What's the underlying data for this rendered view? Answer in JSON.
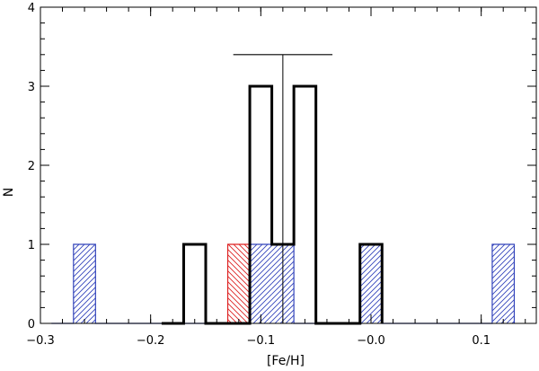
{
  "chart_data": {
    "type": "histogram",
    "xlabel": "[Fe/H]",
    "ylabel": "N",
    "xlim": [
      -0.3,
      0.15
    ],
    "ylim": [
      0,
      4
    ],
    "xticks": [
      -0.3,
      -0.2,
      -0.1,
      0.0,
      0.1
    ],
    "xtick_labels": [
      "−0.3",
      "−0.2",
      "−0.1",
      "−0.0",
      "0.1"
    ],
    "yticks": [
      0,
      1,
      2,
      3,
      4
    ],
    "ytick_labels": [
      "0",
      "1",
      "2",
      "3",
      "4"
    ],
    "bin_width": 0.02,
    "series": [
      {
        "style": "black-thick-outline",
        "color": "#000000",
        "edges": [
          -0.19,
          -0.17,
          -0.15,
          -0.13,
          -0.11,
          -0.09,
          -0.07,
          -0.05,
          -0.03,
          -0.01,
          0.01
        ],
        "counts": [
          0,
          1,
          0,
          0,
          3,
          1,
          3,
          0,
          0,
          1
        ]
      },
      {
        "style": "blue-hatched",
        "color": "#3344bb",
        "edges": [
          -0.29,
          -0.27,
          -0.25,
          -0.23,
          -0.21,
          -0.19,
          -0.17,
          -0.15,
          -0.13,
          -0.11,
          -0.09,
          -0.07,
          -0.05,
          -0.03,
          -0.01,
          0.01,
          0.03,
          0.05,
          0.07,
          0.09,
          0.11,
          0.13
        ],
        "counts": [
          0,
          1,
          0,
          0,
          0,
          0,
          0,
          0,
          0,
          1,
          1,
          0,
          0,
          0,
          1,
          0,
          0,
          0,
          0,
          0,
          1
        ]
      },
      {
        "style": "red-hatched",
        "color": "#dd2222",
        "edges": [
          -0.13,
          -0.11
        ],
        "counts": [
          1
        ]
      }
    ],
    "annotations": {
      "mean_line_x": -0.08,
      "mean_line_top": 3.4,
      "error_bar_y": 3.4,
      "error_bar_x_range": [
        -0.125,
        -0.035
      ]
    }
  }
}
